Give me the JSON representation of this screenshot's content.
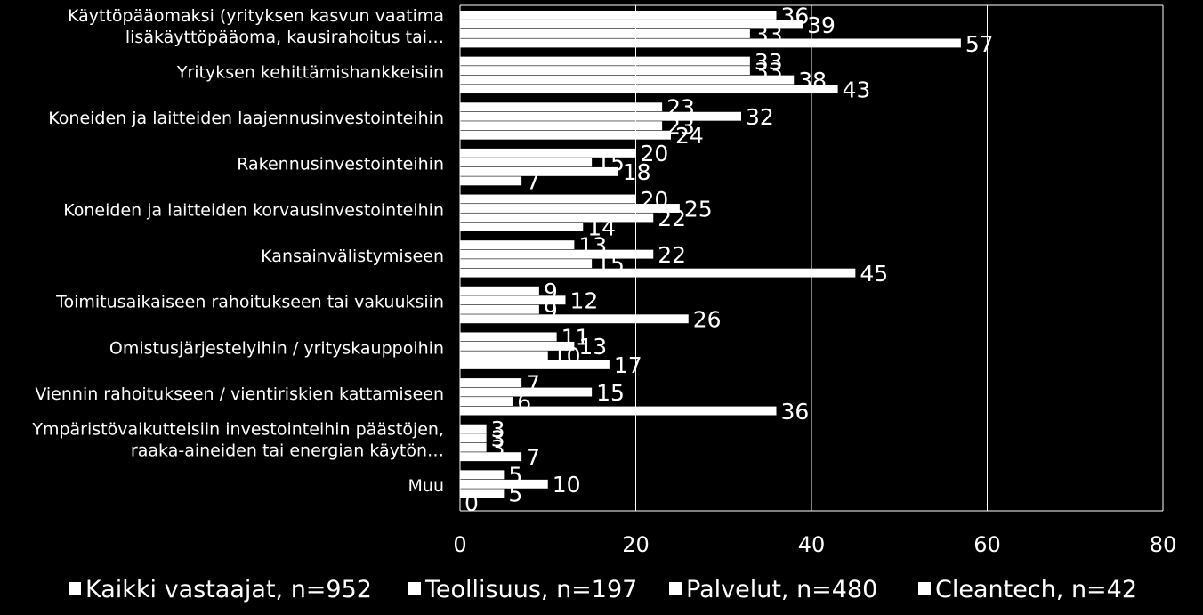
{
  "chart_data": {
    "type": "bar",
    "orientation": "horizontal",
    "categories": [
      [
        "Käyttöpääomaksi (yrityksen kasvun vaatima",
        "lisäkäyttöpääoma, kausirahoitus tai…"
      ],
      [
        "Yrityksen kehittämishankkeisiin"
      ],
      [
        "Koneiden ja laitteiden laajennusinvestointeihin"
      ],
      [
        "Rakennusinvestointeihin"
      ],
      [
        "Koneiden ja laitteiden korvausinvestointeihin"
      ],
      [
        "Kansainvälistymiseen"
      ],
      [
        "Toimitusaikaiseen rahoitukseen tai vakuuksiin"
      ],
      [
        "Omistusjärjestelyihin / yrityskauppoihin"
      ],
      [
        "Viennin rahoitukseen / vientiriskien kattamiseen"
      ],
      [
        "Ympäristövaikutteisiin investointeihin päästöjen,",
        "raaka-aineiden tai energian käytön…"
      ],
      [
        "Muu"
      ]
    ],
    "series": [
      {
        "name": "Kaikki vastaajat, n=952",
        "values": [
          36,
          33,
          23,
          20,
          20,
          13,
          9,
          11,
          7,
          3,
          5
        ]
      },
      {
        "name": "Teollisuus, n=197",
        "values": [
          39,
          33,
          32,
          15,
          25,
          22,
          12,
          13,
          15,
          3,
          10
        ]
      },
      {
        "name": "Palvelut, n=480",
        "values": [
          33,
          38,
          23,
          18,
          22,
          15,
          9,
          10,
          6,
          3,
          5
        ]
      },
      {
        "name": "Cleantech, n=42",
        "values": [
          57,
          43,
          24,
          7,
          14,
          45,
          26,
          17,
          36,
          7,
          0
        ]
      }
    ],
    "xlim": [
      0,
      80
    ],
    "xticks": [
      0,
      20,
      40,
      60,
      80
    ],
    "grid": true,
    "legend_position": "bottom",
    "colors": {
      "background": "#000000",
      "bar": "#ffffff",
      "grid": "#ffffff",
      "text": "#ffffff"
    }
  }
}
